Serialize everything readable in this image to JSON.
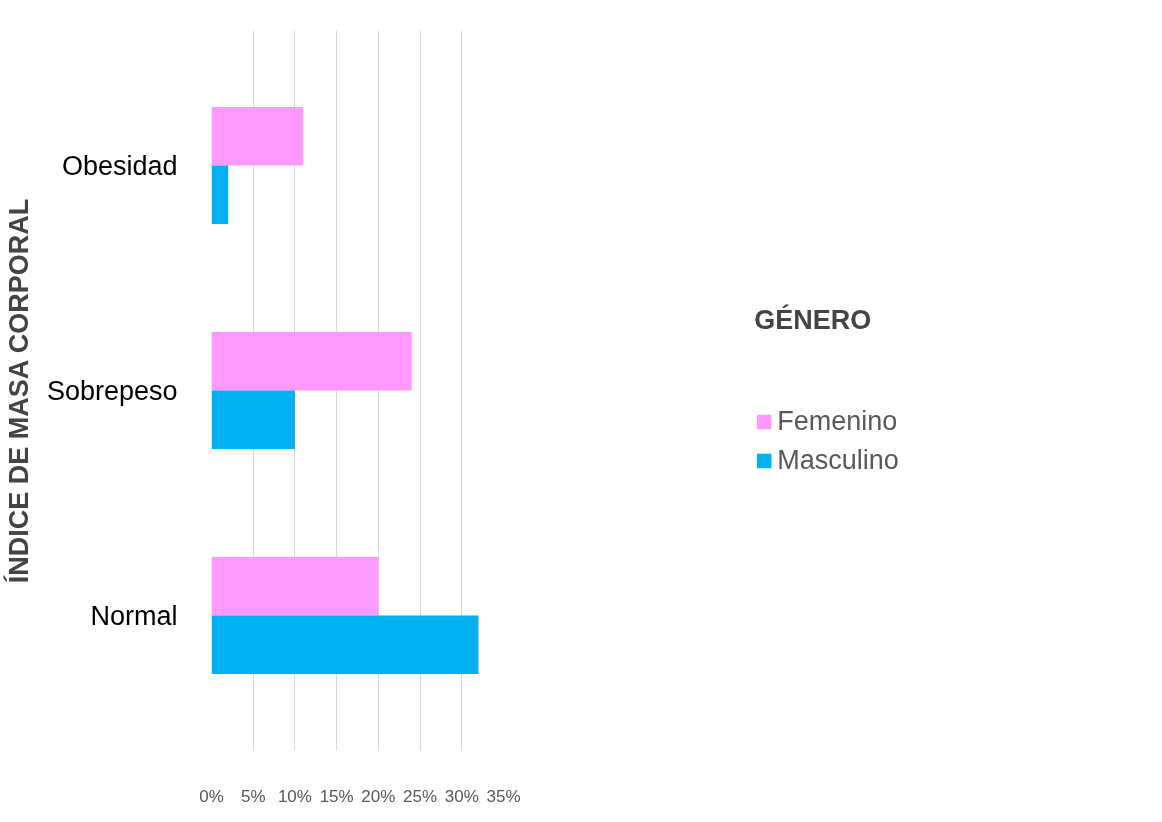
{
  "chart_data": {
    "type": "bar",
    "orientation": "horizontal",
    "ylabel": "ÍNDICE DE MASA CORPORAL",
    "legend_title": "GÉNERO",
    "categories": [
      "Obesidad",
      "Sobrepeso",
      "Normal"
    ],
    "series": [
      {
        "name": "Femenino",
        "color": "#ff99ff",
        "values": [
          11,
          24,
          20
        ]
      },
      {
        "name": "Masculino",
        "color": "#00b0f0",
        "values": [
          2,
          10,
          32
        ]
      }
    ],
    "xlim": [
      0,
      35
    ],
    "xticks": [
      {
        "value": 0,
        "label": "0%"
      },
      {
        "value": 5,
        "label": "5%"
      },
      {
        "value": 10,
        "label": "10%"
      },
      {
        "value": 15,
        "label": "15%"
      },
      {
        "value": 20,
        "label": "20%"
      },
      {
        "value": 25,
        "label": "25%"
      },
      {
        "value": 30,
        "label": "30%"
      },
      {
        "value": 35,
        "label": "35%"
      }
    ],
    "grid": "x",
    "legend": "right"
  }
}
